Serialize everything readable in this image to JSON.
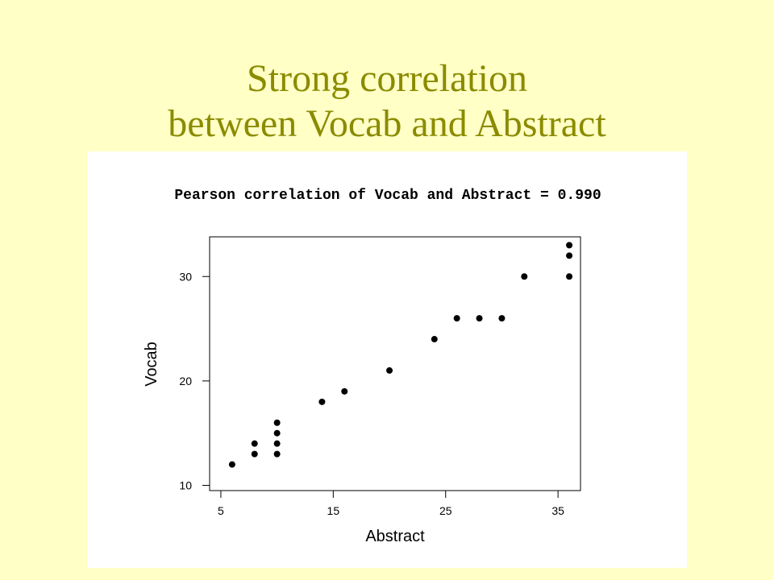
{
  "slide": {
    "title_line1": "Strong correlation",
    "title_line2": "between Vocab and Abstract",
    "title_color": "#8b8b00",
    "background_color": "#ffffc6"
  },
  "chart_data": {
    "type": "scatter",
    "title": "Pearson correlation of Vocab and Abstract = 0.990",
    "xlabel": "Abstract",
    "ylabel": "Vocab",
    "xlim": [
      4,
      37
    ],
    "ylim": [
      9.5,
      33.8
    ],
    "xticks": [
      5,
      15,
      25,
      35
    ],
    "yticks": [
      10,
      20,
      30
    ],
    "grid": false,
    "points": [
      {
        "x": 6,
        "y": 12
      },
      {
        "x": 8,
        "y": 13
      },
      {
        "x": 8,
        "y": 14
      },
      {
        "x": 10,
        "y": 13
      },
      {
        "x": 10,
        "y": 14
      },
      {
        "x": 10,
        "y": 15
      },
      {
        "x": 10,
        "y": 16
      },
      {
        "x": 14,
        "y": 18
      },
      {
        "x": 16,
        "y": 19
      },
      {
        "x": 20,
        "y": 21
      },
      {
        "x": 24,
        "y": 24
      },
      {
        "x": 26,
        "y": 26
      },
      {
        "x": 28,
        "y": 26
      },
      {
        "x": 30,
        "y": 26
      },
      {
        "x": 32,
        "y": 30
      },
      {
        "x": 36,
        "y": 30
      },
      {
        "x": 36,
        "y": 32
      },
      {
        "x": 36,
        "y": 33
      }
    ]
  }
}
